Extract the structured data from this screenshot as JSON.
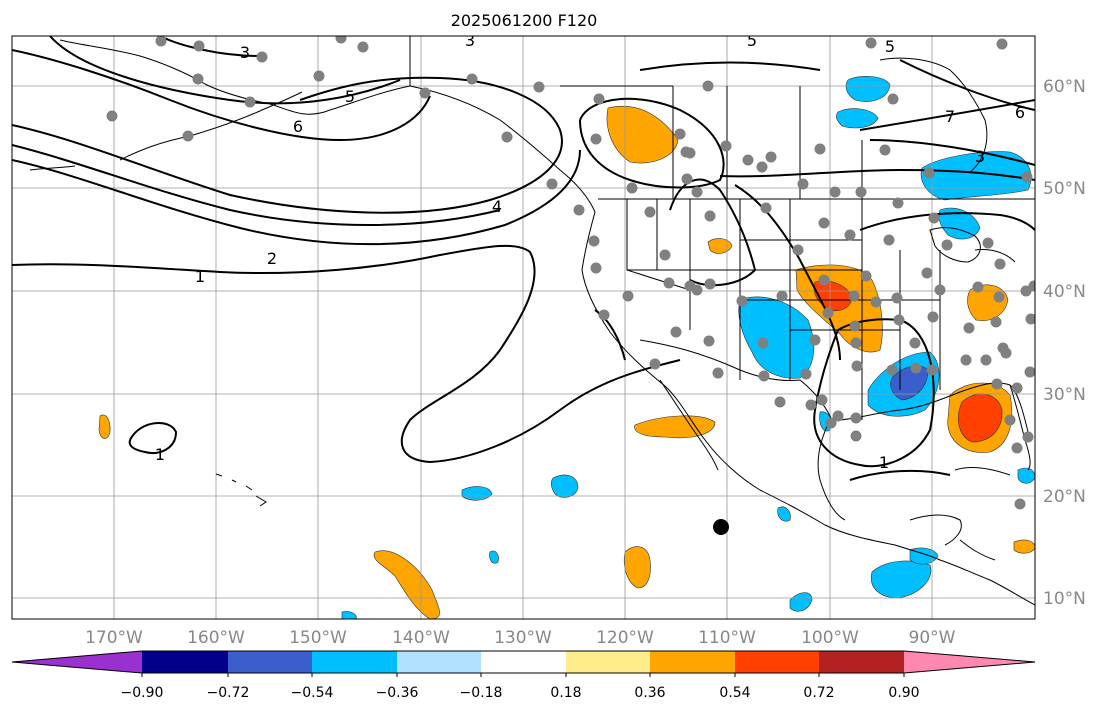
{
  "title": "2025061200 F120",
  "lon_labels": [
    "170°W",
    "160°W",
    "150°W",
    "140°W",
    "130°W",
    "120°W",
    "110°W",
    "100°W",
    "90°W"
  ],
  "lat_labels": [
    "60°N",
    "50°N",
    "40°N",
    "30°N",
    "20°N",
    "10°N"
  ],
  "contour_labels": [
    "1",
    "1",
    "1",
    "2",
    "3",
    "3",
    "3",
    "4",
    "5",
    "5",
    "5",
    "6",
    "6",
    "7"
  ],
  "colorbar": {
    "ticks": [
      "−0.90",
      "−0.72",
      "−0.54",
      "−0.36",
      "−0.18",
      "0.18",
      "0.36",
      "0.54",
      "0.72",
      "0.90"
    ],
    "colors": [
      "#9b30d0",
      "#00008b",
      "#3a5fcd",
      "#00bfff",
      "#b0e2ff",
      "#ffffff",
      "#ffec8b",
      "#ffa500",
      "#ff4000",
      "#b22222",
      "#ff88b0"
    ]
  },
  "colors": {
    "land_border": "#000000",
    "grid": "#999999",
    "station": "#808080",
    "axis_label": "#888888"
  }
}
